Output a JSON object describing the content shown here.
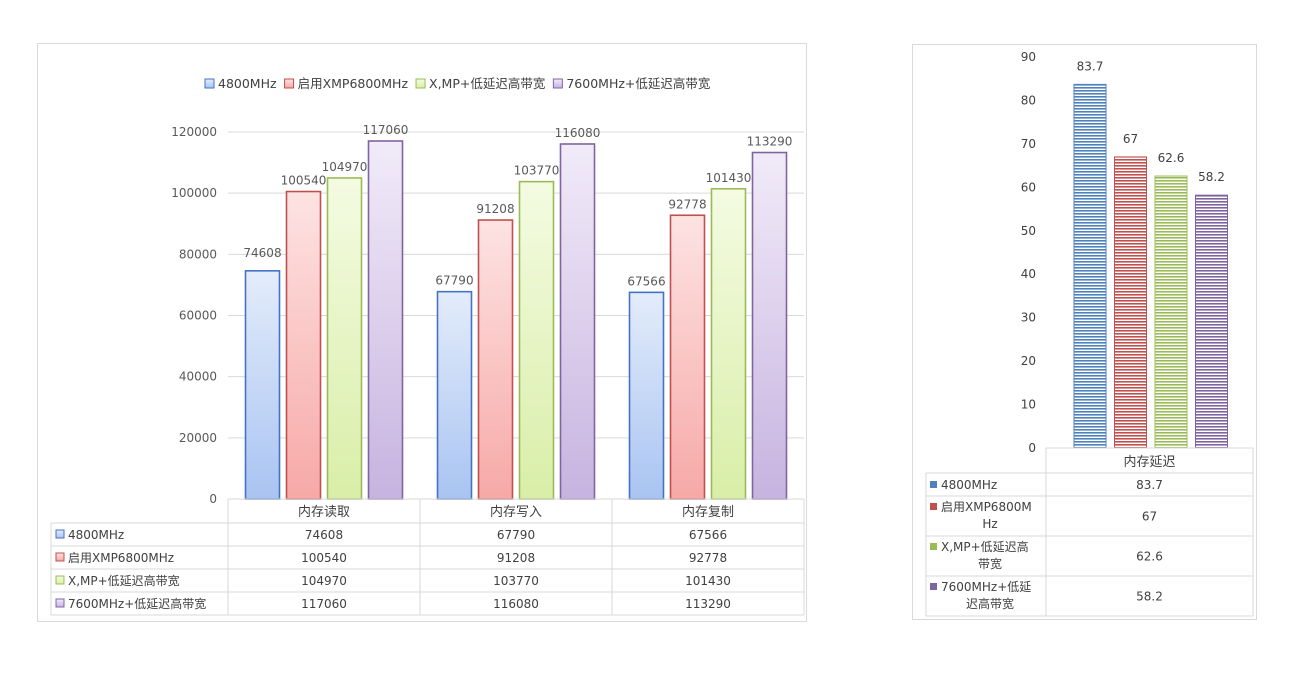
{
  "chart_data": [
    {
      "type": "bar",
      "legend_position": "top",
      "grid": true,
      "ylim": [
        0,
        120000
      ],
      "yticks": [
        0,
        20000,
        40000,
        60000,
        80000,
        100000,
        120000
      ],
      "categories": [
        "内存读取",
        "内存写入",
        "内存复制"
      ],
      "series": [
        {
          "name": "4800MHz",
          "values": [
            74608,
            67790,
            67566
          ],
          "color": "#4472c4",
          "fill_light": "#e3ecfa",
          "fill_dark": "#a9c4f2"
        },
        {
          "name": "启用XMP6800MHz",
          "values": [
            100540,
            91208,
            92778
          ],
          "color": "#c0504d",
          "fill_light": "#fde3e3",
          "fill_dark": "#f6a9a7"
        },
        {
          "name": "X,MP+低延迟高带宽",
          "values": [
            104970,
            103770,
            101430
          ],
          "color": "#9bbb59",
          "fill_light": "#f4fbe2",
          "fill_dark": "#d9eea8"
        },
        {
          "name": "7600MHz+低延迟高带宽",
          "values": [
            117060,
            116080,
            113290
          ],
          "color": "#8064a2",
          "fill_light": "#f1ebf8",
          "fill_dark": "#c7b3e0"
        }
      ],
      "table_rows": [
        {
          "label": "4800MHz",
          "values": [
            "74608",
            "67790",
            "67566"
          ]
        },
        {
          "label": "启用XMP6800MHz",
          "values": [
            "100540",
            "91208",
            "92778"
          ]
        },
        {
          "label": "X,MP+低延迟高带宽",
          "values": [
            "104970",
            "103770",
            "101430"
          ]
        },
        {
          "label": "7600MHz+低延迟高带宽",
          "values": [
            "117060",
            "116080",
            "113290"
          ]
        }
      ]
    },
    {
      "type": "bar",
      "legend_position": "none",
      "grid": false,
      "ylim": [
        0,
        90
      ],
      "yticks": [
        0,
        10,
        20,
        30,
        40,
        50,
        60,
        70,
        80,
        90
      ],
      "categories": [
        "内存延迟"
      ],
      "series": [
        {
          "name": "4800MHz",
          "values": [
            83.7
          ],
          "color": "#4f81bd"
        },
        {
          "name": "启用XMP6800MHz",
          "values": [
            67
          ],
          "color": "#c0504d"
        },
        {
          "name": "X,MP+低延迟高带宽",
          "values": [
            62.6
          ],
          "color": "#9bbb59"
        },
        {
          "name": "7600MHz+低延迟高带宽",
          "values": [
            58.2
          ],
          "color": "#8064a2"
        }
      ],
      "table_rows": [
        {
          "label": "4800MHz",
          "values": [
            "83.7"
          ]
        },
        {
          "label": "启用XMP6800MHz",
          "values": [
            "67"
          ]
        },
        {
          "label": "X,MP+低延迟高带宽",
          "values": [
            "62.6"
          ]
        },
        {
          "label": "7600MHz+低延迟高带宽",
          "values": [
            "58.2"
          ]
        }
      ]
    }
  ]
}
